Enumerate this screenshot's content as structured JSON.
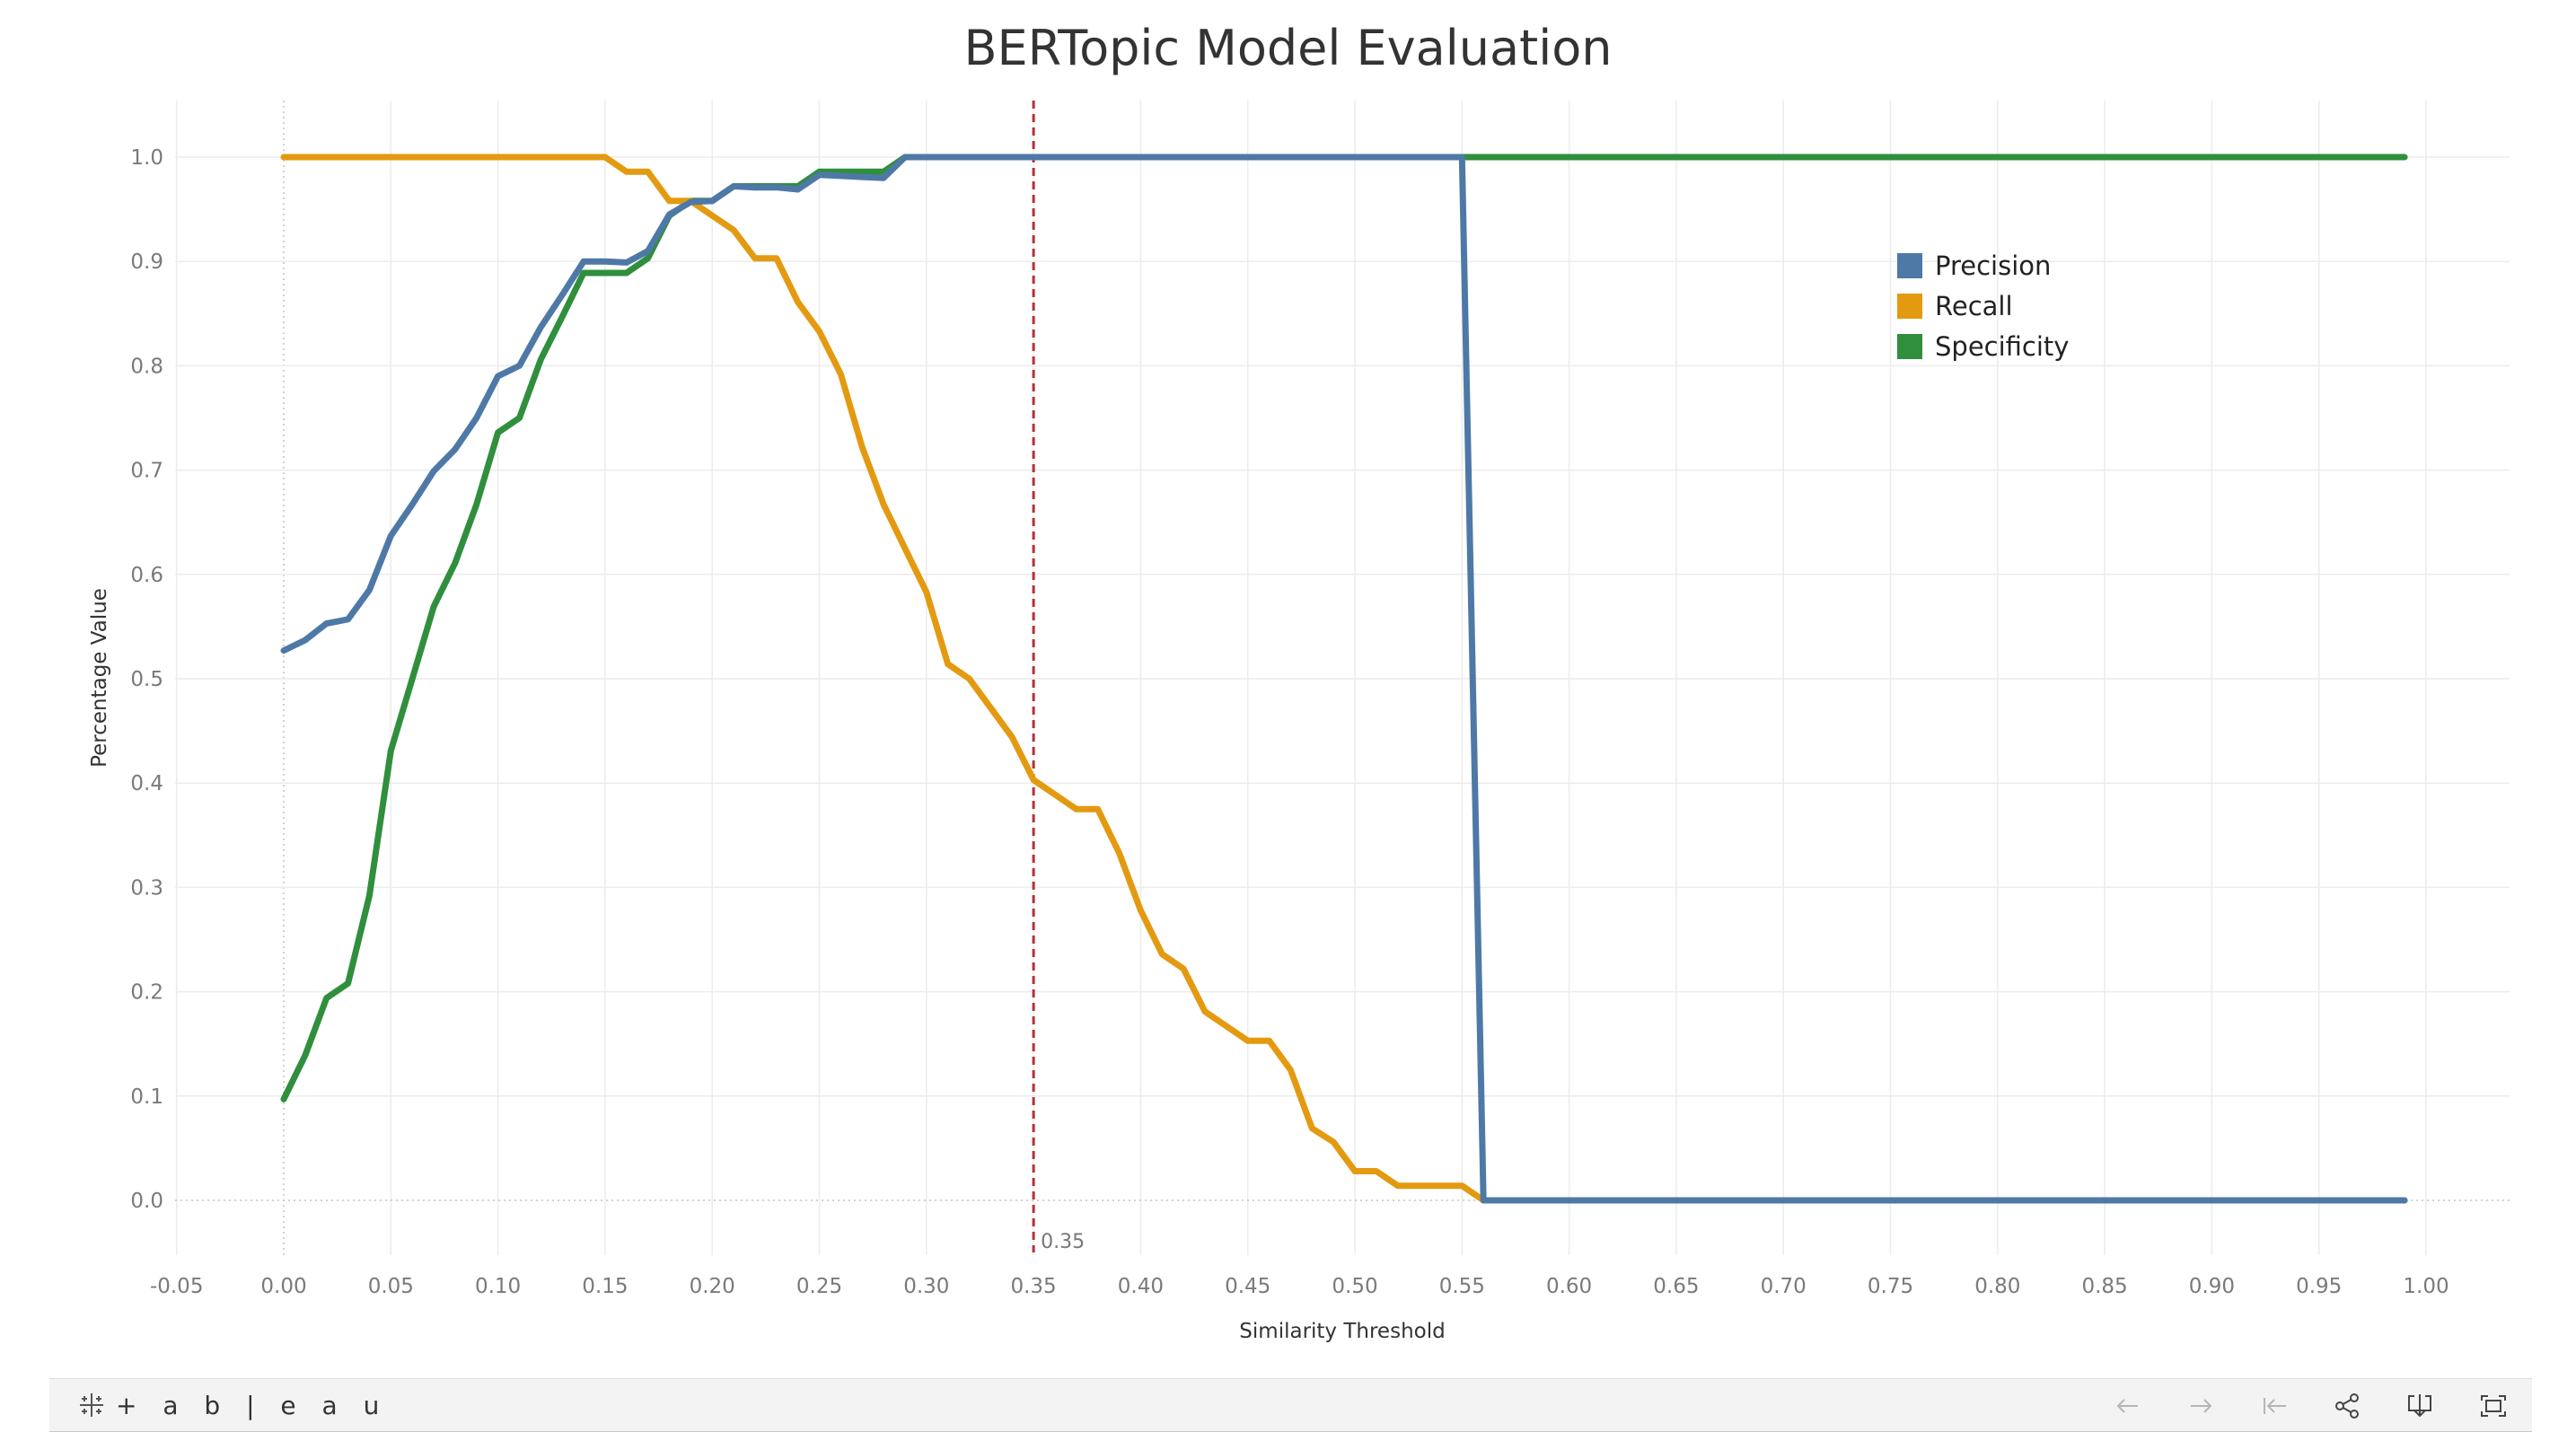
{
  "chart_data": {
    "type": "line",
    "title": "BERTopic Model Evaluation",
    "xlabel": "Similarity Threshold",
    "ylabel": "Percentage Value",
    "xlim": [
      -0.05,
      1.0
    ],
    "ylim": [
      -0.05,
      1.05
    ],
    "x_ticks": [
      "-0.05",
      "0.00",
      "0.05",
      "0.10",
      "0.15",
      "0.20",
      "0.25",
      "0.30",
      "0.35",
      "0.40",
      "0.45",
      "0.50",
      "0.55",
      "0.60",
      "0.65",
      "0.70",
      "0.75",
      "0.80",
      "0.85",
      "0.90",
      "0.95",
      "1.00"
    ],
    "y_ticks": [
      "0.0",
      "0.1",
      "0.2",
      "0.3",
      "0.4",
      "0.5",
      "0.6",
      "0.7",
      "0.8",
      "0.9",
      "1.0"
    ],
    "grid": true,
    "legend_position": "top-right",
    "reference_line": {
      "x": 0.35,
      "label": "0.35",
      "color": "#b5303a"
    },
    "x": [
      0.0,
      0.01,
      0.02,
      0.03,
      0.04,
      0.05,
      0.06,
      0.07,
      0.08,
      0.09,
      0.1,
      0.11,
      0.12,
      0.13,
      0.14,
      0.15,
      0.16,
      0.17,
      0.18,
      0.19,
      0.2,
      0.21,
      0.22,
      0.23,
      0.24,
      0.25,
      0.26,
      0.27,
      0.28,
      0.29,
      0.3,
      0.31,
      0.32,
      0.33,
      0.34,
      0.35,
      0.36,
      0.37,
      0.38,
      0.39,
      0.4,
      0.41,
      0.42,
      0.43,
      0.44,
      0.45,
      0.46,
      0.47,
      0.48,
      0.49,
      0.5,
      0.51,
      0.52,
      0.53,
      0.54,
      0.55,
      0.56,
      0.57,
      0.58,
      0.59,
      0.6,
      0.61,
      0.62,
      0.63,
      0.64,
      0.65,
      0.66,
      0.67,
      0.68,
      0.69,
      0.7,
      0.71,
      0.72,
      0.73,
      0.74,
      0.75,
      0.76,
      0.77,
      0.78,
      0.79,
      0.8,
      0.81,
      0.82,
      0.83,
      0.84,
      0.85,
      0.86,
      0.87,
      0.88,
      0.89,
      0.9,
      0.91,
      0.92,
      0.93,
      0.94,
      0.95,
      0.96,
      0.97,
      0.98,
      0.99
    ],
    "series": [
      {
        "name": "Precision",
        "color": "#4e79a7",
        "values": [
          0.527,
          0.537,
          0.553,
          0.557,
          0.585,
          0.637,
          0.667,
          0.699,
          0.72,
          0.75,
          0.79,
          0.8,
          0.837,
          0.868,
          0.9,
          0.9,
          0.899,
          0.91,
          0.945,
          0.957,
          0.958,
          0.972,
          0.971,
          0.971,
          0.969,
          0.983,
          0.982,
          0.981,
          0.98,
          1.0,
          1.0,
          1.0,
          1.0,
          1.0,
          1.0,
          1.0,
          1.0,
          1.0,
          1.0,
          1.0,
          1.0,
          1.0,
          1.0,
          1.0,
          1.0,
          1.0,
          1.0,
          1.0,
          1.0,
          1.0,
          1.0,
          1.0,
          1.0,
          1.0,
          1.0,
          1.0,
          0.0,
          0.0,
          0.0,
          0.0,
          0.0,
          0.0,
          0.0,
          0.0,
          0.0,
          0.0,
          0.0,
          0.0,
          0.0,
          0.0,
          0.0,
          0.0,
          0.0,
          0.0,
          0.0,
          0.0,
          0.0,
          0.0,
          0.0,
          0.0,
          0.0,
          0.0,
          0.0,
          0.0,
          0.0,
          0.0,
          0.0,
          0.0,
          0.0,
          0.0,
          0.0,
          0.0,
          0.0,
          0.0,
          0.0,
          0.0,
          0.0,
          0.0,
          0.0,
          0.0
        ]
      },
      {
        "name": "Recall",
        "color": "#e49a10",
        "values": [
          1.0,
          1.0,
          1.0,
          1.0,
          1.0,
          1.0,
          1.0,
          1.0,
          1.0,
          1.0,
          1.0,
          1.0,
          1.0,
          1.0,
          1.0,
          1.0,
          0.986,
          0.986,
          0.958,
          0.958,
          0.944,
          0.93,
          0.903,
          0.903,
          0.861,
          0.833,
          0.792,
          0.722,
          0.667,
          0.625,
          0.583,
          0.514,
          0.5,
          0.472,
          0.444,
          0.403,
          0.389,
          0.375,
          0.375,
          0.333,
          0.278,
          0.236,
          0.222,
          0.181,
          0.167,
          0.153,
          0.153,
          0.125,
          0.069,
          0.056,
          0.028,
          0.028,
          0.014,
          0.014,
          0.014,
          0.014,
          0.0,
          0.0,
          0.0,
          0.0,
          0.0,
          0.0,
          0.0,
          0.0,
          0.0,
          0.0,
          0.0,
          0.0,
          0.0,
          0.0,
          0.0,
          0.0,
          0.0,
          0.0,
          0.0,
          0.0,
          0.0,
          0.0,
          0.0,
          0.0,
          0.0,
          0.0,
          0.0,
          0.0,
          0.0,
          0.0,
          0.0,
          0.0,
          0.0,
          0.0,
          0.0,
          0.0,
          0.0,
          0.0,
          0.0,
          0.0,
          0.0,
          0.0,
          0.0,
          0.0
        ]
      },
      {
        "name": "Specificity",
        "color": "#2f8f3c",
        "values": [
          0.097,
          0.139,
          0.194,
          0.208,
          0.292,
          0.431,
          0.5,
          0.569,
          0.611,
          0.667,
          0.736,
          0.75,
          0.806,
          0.847,
          0.889,
          0.889,
          0.889,
          0.903,
          0.944,
          0.958,
          0.958,
          0.972,
          0.972,
          0.972,
          0.972,
          0.986,
          0.986,
          0.986,
          0.986,
          1.0,
          1.0,
          1.0,
          1.0,
          1.0,
          1.0,
          1.0,
          1.0,
          1.0,
          1.0,
          1.0,
          1.0,
          1.0,
          1.0,
          1.0,
          1.0,
          1.0,
          1.0,
          1.0,
          1.0,
          1.0,
          1.0,
          1.0,
          1.0,
          1.0,
          1.0,
          1.0,
          1.0,
          1.0,
          1.0,
          1.0,
          1.0,
          1.0,
          1.0,
          1.0,
          1.0,
          1.0,
          1.0,
          1.0,
          1.0,
          1.0,
          1.0,
          1.0,
          1.0,
          1.0,
          1.0,
          1.0,
          1.0,
          1.0,
          1.0,
          1.0,
          1.0,
          1.0,
          1.0,
          1.0,
          1.0,
          1.0,
          1.0,
          1.0,
          1.0,
          1.0,
          1.0,
          1.0,
          1.0,
          1.0,
          1.0,
          1.0,
          1.0,
          1.0,
          1.0,
          1.0
        ]
      }
    ]
  },
  "toolbar": {
    "logo_text": "+ a b | e a u",
    "icons": [
      "undo-icon",
      "redo-icon",
      "revert-icon",
      "share-icon",
      "download-icon",
      "fullscreen-icon"
    ]
  }
}
